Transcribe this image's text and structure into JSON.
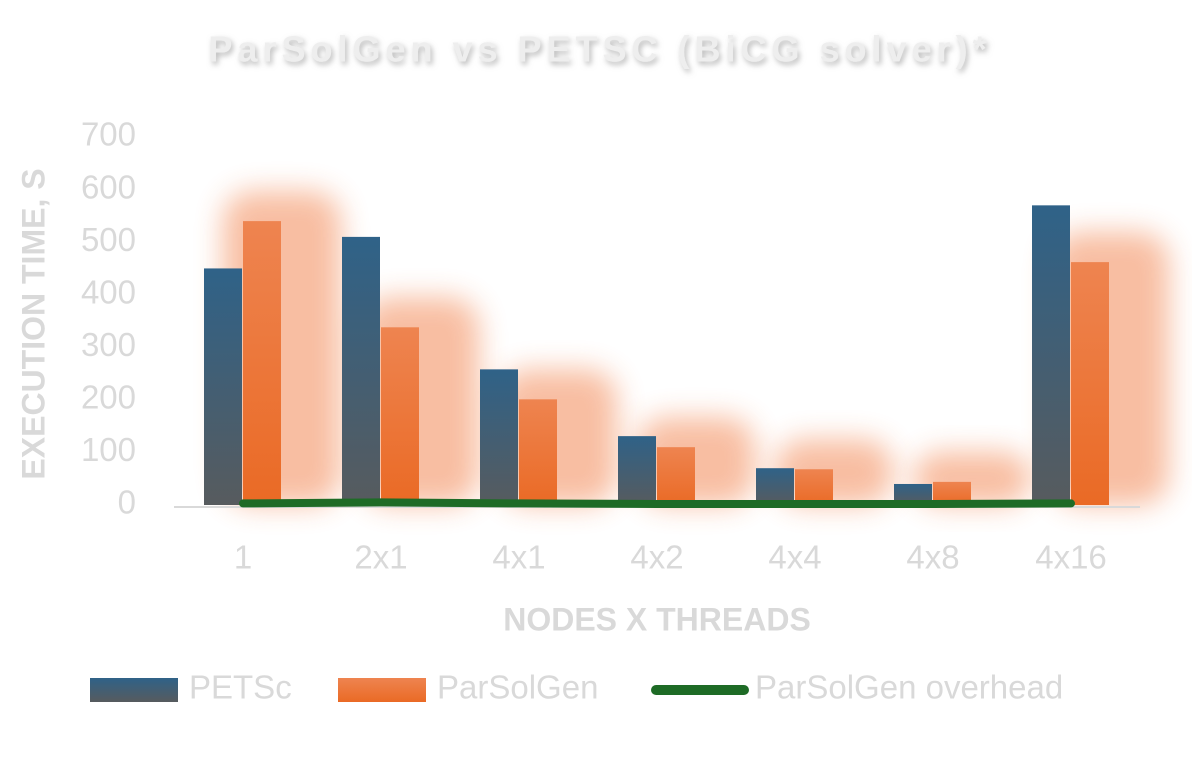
{
  "chart_data": {
    "type": "bar",
    "title": "ParSolGen vs PETSC (BiCG solver)*",
    "x_label": "NODES X THREADS",
    "y_label": "EXECUTION TIME, S",
    "categories": [
      "1",
      "2x1",
      "4x1",
      "4x2",
      "4x4",
      "4x8",
      "4x16"
    ],
    "series": [
      {
        "name": "PETSc",
        "color": "#1f5f8b",
        "type": "bar",
        "values": [
          450,
          510,
          258,
          131,
          70,
          40,
          570
        ]
      },
      {
        "name": "ParSolGen",
        "color": "#f07030",
        "type": "bar",
        "values": [
          540,
          338,
          201,
          110,
          68,
          44,
          462
        ]
      },
      {
        "name": "ParSolGen overhead",
        "color": "#1e6b26",
        "type": "line",
        "values": [
          3,
          5,
          3,
          2,
          2,
          2,
          3
        ]
      }
    ],
    "ylim": [
      0,
      700
    ],
    "yticks": [
      0,
      100,
      200,
      300,
      400,
      500,
      600,
      700
    ],
    "grid": false
  }
}
